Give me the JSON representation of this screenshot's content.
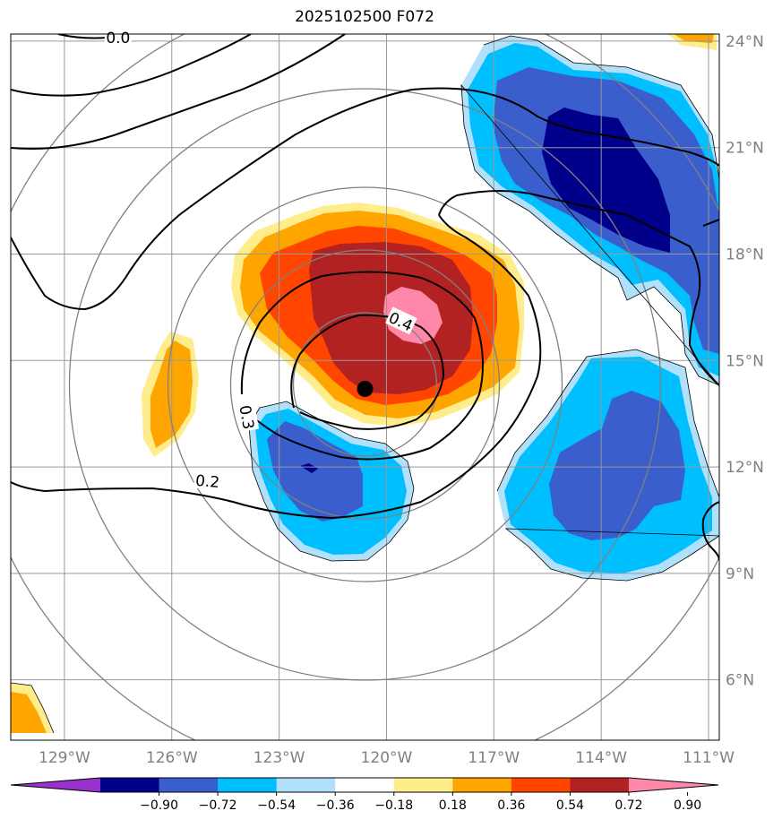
{
  "title": "2025102500 F072",
  "map": {
    "lon_range": [
      -130.5,
      -110.7
    ],
    "lat_range": [
      4.3,
      24.2
    ],
    "lon_ticks": [
      {
        "value": -129,
        "label": "129°W"
      },
      {
        "value": -126,
        "label": "126°W"
      },
      {
        "value": -123,
        "label": "123°W"
      },
      {
        "value": -120,
        "label": "120°W"
      },
      {
        "value": -117,
        "label": "117°W"
      },
      {
        "value": -114,
        "label": "114°W"
      },
      {
        "value": -111,
        "label": "111°W"
      }
    ],
    "lat_ticks": [
      {
        "value": 24,
        "label": "24°N"
      },
      {
        "value": 21,
        "label": "21°N"
      },
      {
        "value": 18,
        "label": "18°N"
      },
      {
        "value": 15,
        "label": "15°N"
      },
      {
        "value": 12,
        "label": "12°N"
      },
      {
        "value": 9,
        "label": "9°N"
      },
      {
        "value": 6,
        "label": "6°N"
      }
    ],
    "storm_center": {
      "lon": -120.6,
      "lat": 14.2
    },
    "contour_labels": [
      {
        "text": "0.4",
        "lon": -119.6,
        "lat": 16.1,
        "rotate": 25
      },
      {
        "text": "0.3",
        "lon": -123.9,
        "lat": 13.4,
        "rotate": 80
      },
      {
        "text": "0.2",
        "lon": -125.0,
        "lat": 11.6,
        "rotate": 5
      },
      {
        "text": "0.0",
        "lon": -127.5,
        "lat": 24.1,
        "rotate": 0
      }
    ]
  },
  "colorbar": {
    "colors": [
      "#9932cc",
      "#00008b",
      "#3a5fcd",
      "#00bfff",
      "#b0e0fa",
      "#ffffff",
      "#ffec8b",
      "#ffa500",
      "#ff4500",
      "#b22222",
      "#ff88aa"
    ],
    "tick_labels": [
      "−0.90",
      "−0.72",
      "−0.54",
      "−0.36",
      "−0.18",
      "0.18",
      "0.36",
      "0.54",
      "0.72",
      "0.90"
    ]
  }
}
